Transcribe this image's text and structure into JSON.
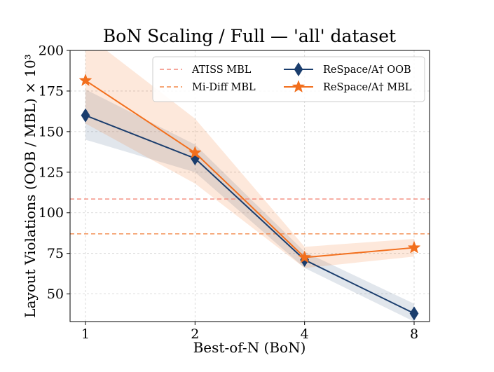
{
  "chart_data": {
    "type": "line",
    "title": "BoN Scaling / Full — 'all' dataset",
    "xlabel": "Best-of-N (BoN)",
    "ylabel": "Layout Violations (OOB / MBL) × 10³",
    "x": [
      1,
      2,
      4,
      8
    ],
    "x_scale": "log2",
    "x_ticks": [
      "1",
      "2",
      "4",
      "8"
    ],
    "ylim": [
      33,
      200
    ],
    "y_ticks": [
      50,
      75,
      100,
      125,
      150,
      175,
      200
    ],
    "grid": true,
    "legend_position": "top-right",
    "series": [
      {
        "name": "ReSpace/A† OOB",
        "color": "#1a3d6d",
        "marker": "diamond",
        "values": [
          160,
          133.5,
          71,
          38
        ],
        "band_low": [
          145,
          125,
          66,
          33
        ],
        "band_high": [
          176,
          142,
          76,
          44
        ]
      },
      {
        "name": "ReSpace/A† MBL",
        "color": "#f26f1d",
        "marker": "star",
        "values": [
          181.5,
          137,
          72.5,
          78.5
        ],
        "band_low": [
          155,
          118,
          66,
          73
        ],
        "band_high": [
          210,
          158,
          79,
          84
        ]
      }
    ],
    "baselines": [
      {
        "name": "ATISS MBL",
        "value": 108.5,
        "color": "#f4897a"
      },
      {
        "name": "Mi-Diff MBL",
        "value": 87,
        "color": "#f3884a"
      }
    ]
  }
}
